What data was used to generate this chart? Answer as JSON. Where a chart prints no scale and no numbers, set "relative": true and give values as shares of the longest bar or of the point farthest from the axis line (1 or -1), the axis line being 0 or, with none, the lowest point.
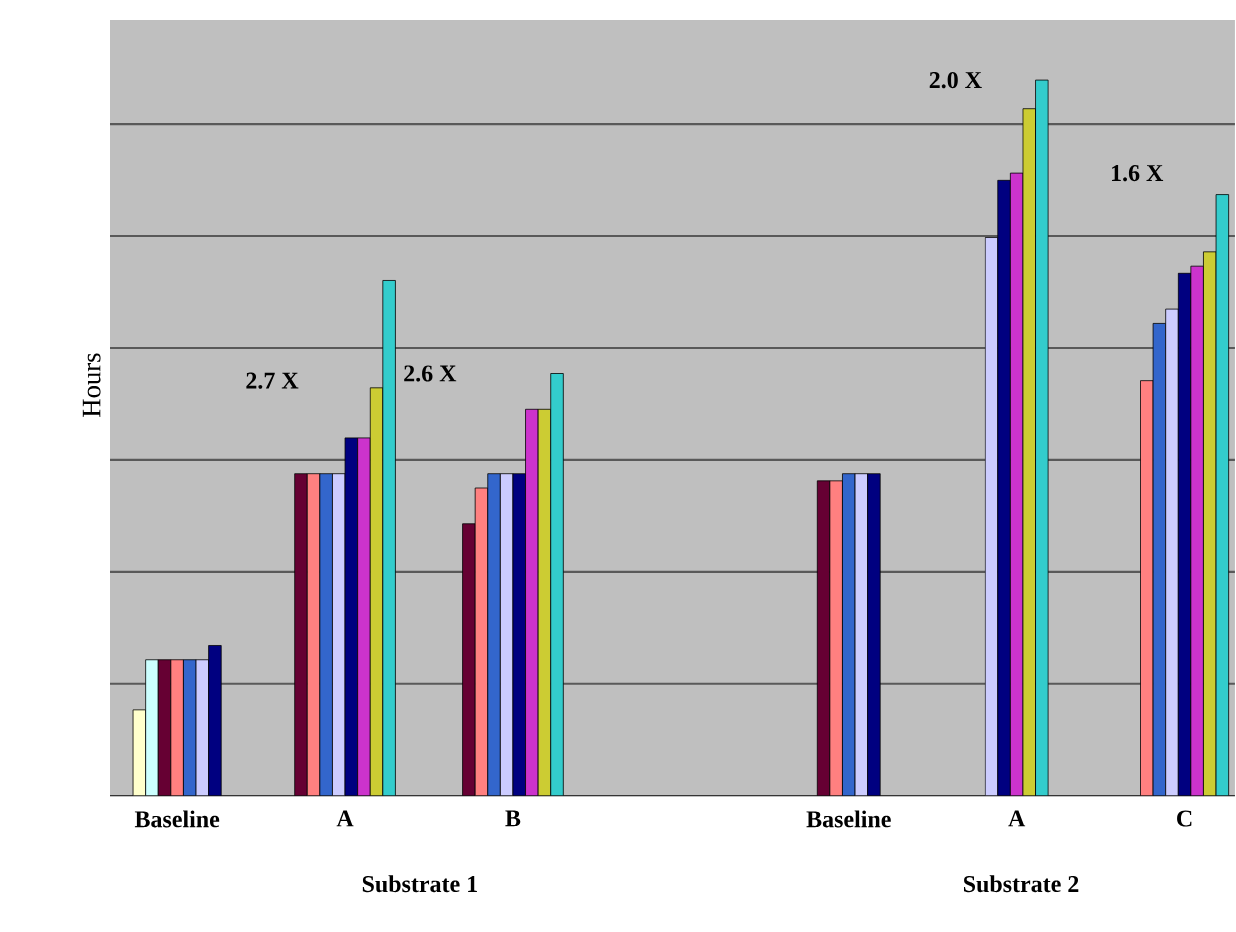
{
  "chart_data": {
    "type": "bar",
    "relative": true,
    "ylabel": "Hours",
    "grid": "y",
    "categories": [
      "Baseline",
      "A",
      "B",
      null,
      "Baseline",
      "A",
      "C"
    ],
    "annotations": [
      "2.7 X",
      "2.6 X",
      "2.0 X",
      "1.6 X",
      "Substrate 1",
      "Substrate 2"
    ],
    "series": [
      {
        "color": "#ffffcc",
        "values": [
          0.12,
          null,
          null,
          null,
          null,
          null,
          null
        ]
      },
      {
        "color": "#ccffff",
        "values": [
          0.19,
          null,
          null,
          null,
          null,
          null,
          null
        ]
      },
      {
        "color": "#660033",
        "values": [
          0.19,
          0.45,
          0.38,
          null,
          0.44,
          null,
          null
        ]
      },
      {
        "color": "#ff8080",
        "values": [
          0.19,
          0.45,
          0.43,
          null,
          0.44,
          null,
          0.58
        ]
      },
      {
        "color": "#3366cc",
        "values": [
          0.19,
          0.45,
          0.45,
          null,
          0.45,
          null,
          0.66
        ]
      },
      {
        "color": "#ccccff",
        "values": [
          0.19,
          0.45,
          0.45,
          null,
          0.45,
          0.78,
          0.68
        ]
      },
      {
        "color": "#000080",
        "values": [
          0.21,
          0.5,
          0.45,
          null,
          0.45,
          0.86,
          0.73
        ]
      },
      {
        "color": "#cc33cc",
        "values": [
          null,
          0.5,
          0.54,
          null,
          null,
          0.87,
          0.74
        ]
      },
      {
        "color": "#cccc33",
        "values": [
          null,
          0.57,
          0.54,
          null,
          null,
          0.96,
          0.76
        ]
      },
      {
        "color": "#33cccc",
        "values": [
          null,
          0.72,
          0.59,
          null,
          null,
          1,
          0.84
        ]
      }
    ]
  }
}
